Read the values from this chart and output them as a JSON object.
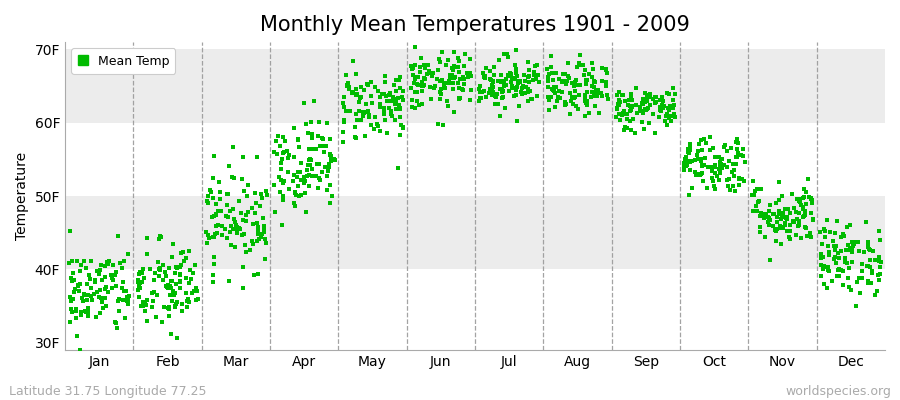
{
  "title": "Monthly Mean Temperatures 1901 - 2009",
  "ylabel": "Temperature",
  "footer_left": "Latitude 31.75 Longitude 77.25",
  "footer_right": "worldspecies.org",
  "y_tick_labels": [
    "30F",
    "40F",
    "50F",
    "60F",
    "70F"
  ],
  "y_tick_values": [
    30,
    40,
    50,
    60,
    70
  ],
  "ylim": [
    29,
    71
  ],
  "months": [
    "Jan",
    "Feb",
    "Mar",
    "Apr",
    "May",
    "Jun",
    "Jul",
    "Aug",
    "Sep",
    "Oct",
    "Nov",
    "Dec"
  ],
  "monthly_means": [
    37.0,
    37.5,
    47.0,
    54.5,
    62.5,
    65.5,
    65.5,
    64.5,
    62.0,
    54.5,
    47.5,
    41.5
  ],
  "monthly_stds": [
    3.0,
    3.2,
    3.5,
    3.2,
    2.5,
    2.0,
    1.8,
    1.8,
    1.5,
    2.0,
    2.2,
    2.5
  ],
  "n_years": 109,
  "dot_color": "#00bb00",
  "dot_size": 6,
  "background_color": "#ffffff",
  "band_color_even": "#ffffff",
  "band_color_odd": "#ececec",
  "legend_label": "Mean Temp",
  "title_fontsize": 15,
  "axis_label_fontsize": 10,
  "tick_fontsize": 10,
  "footer_fontsize": 9
}
